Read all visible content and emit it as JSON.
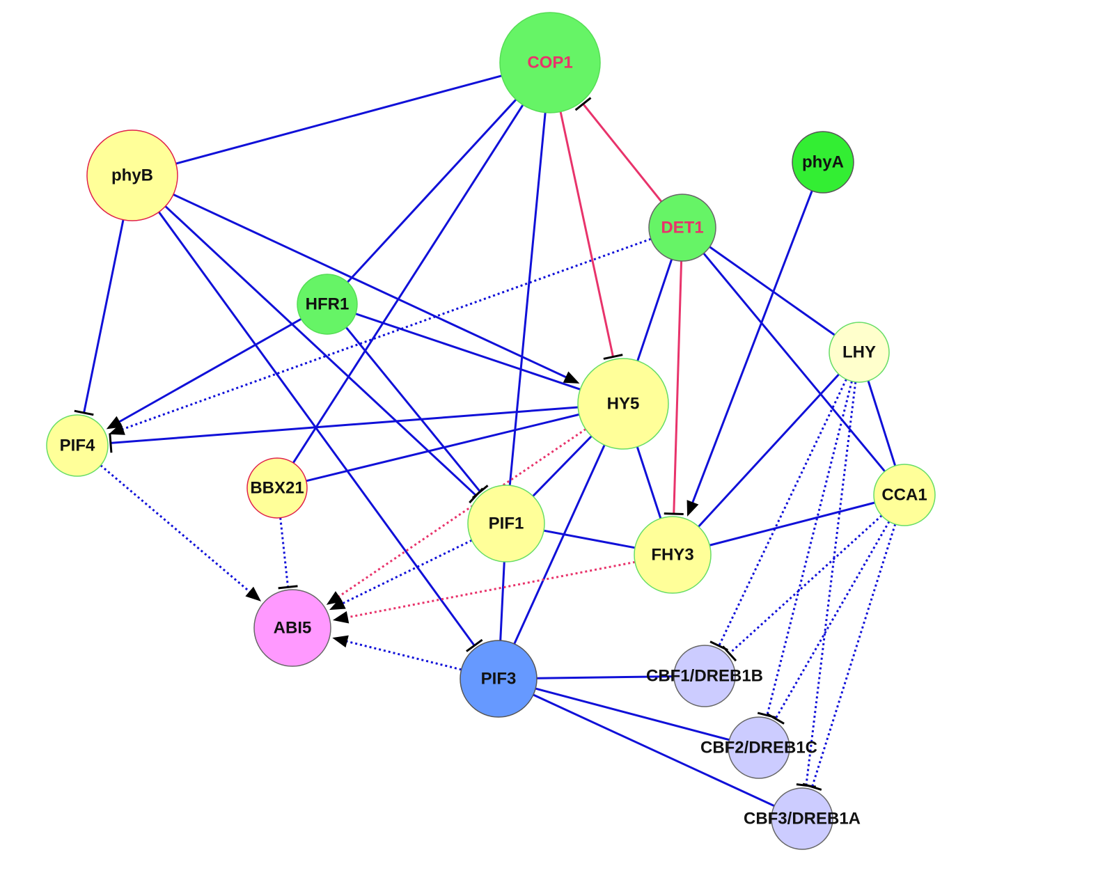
{
  "colors": {
    "activation_edge": "#1010d8",
    "repression_edge": "#e8336b",
    "marker": "#000000",
    "red_label": "#e8336b"
  },
  "nodes": [
    {
      "id": "COP1",
      "label": "COP1",
      "fill": "#66f466",
      "stroke": "#55dd55",
      "label_color": "#e8336b"
    },
    {
      "id": "phyB",
      "label": "phyB",
      "fill": "#ffff99",
      "stroke": "#e0204a",
      "label_color": "#111111"
    },
    {
      "id": "phyA",
      "label": "phyA",
      "fill": "#33ee33",
      "stroke": "#555555",
      "label_color": "#111111"
    },
    {
      "id": "DET1",
      "label": "DET1",
      "fill": "#66f466",
      "stroke": "#666666",
      "label_color": "#e8336b"
    },
    {
      "id": "HFR1",
      "label": "HFR1",
      "fill": "#66f466",
      "stroke": "#55dd55",
      "label_color": "#111111"
    },
    {
      "id": "LHY",
      "label": "LHY",
      "fill": "#ffffcc",
      "stroke": "#66dd66",
      "label_color": "#111111"
    },
    {
      "id": "HY5",
      "label": "HY5",
      "fill": "#ffff99",
      "stroke": "#66dd66",
      "label_color": "#111111"
    },
    {
      "id": "PIF4",
      "label": "PIF4",
      "fill": "#ffff99",
      "stroke": "#66dd66",
      "label_color": "#111111"
    },
    {
      "id": "BBX21",
      "label": "BBX21",
      "fill": "#ffff99",
      "stroke": "#e0204a",
      "label_color": "#111111"
    },
    {
      "id": "PIF1",
      "label": "PIF1",
      "fill": "#ffff99",
      "stroke": "#66dd66",
      "label_color": "#111111"
    },
    {
      "id": "CCA1",
      "label": "CCA1",
      "fill": "#ffff99",
      "stroke": "#66dd66",
      "label_color": "#111111"
    },
    {
      "id": "FHY3",
      "label": "FHY3",
      "fill": "#ffff99",
      "stroke": "#66dd66",
      "label_color": "#111111"
    },
    {
      "id": "ABI5",
      "label": "ABI5",
      "fill": "#ff99ff",
      "stroke": "#666666",
      "label_color": "#111111"
    },
    {
      "id": "PIF3",
      "label": "PIF3",
      "fill": "#6699ff",
      "stroke": "#555555",
      "label_color": "#111111"
    },
    {
      "id": "CBF1",
      "label": "CBF1/DREB1B",
      "fill": "#ccccff",
      "stroke": "#666666",
      "label_color": "#111111"
    },
    {
      "id": "CBF2",
      "label": "CBF2/DREB1C",
      "fill": "#ccccff",
      "stroke": "#666666",
      "label_color": "#111111"
    },
    {
      "id": "CBF3",
      "label": "CBF3/DREB1A",
      "fill": "#ccccff",
      "stroke": "#666666",
      "label_color": "#111111"
    }
  ],
  "edges": [
    {
      "s": "COP1",
      "t": "phyB",
      "color": "blue",
      "style": "solid",
      "end": "none"
    },
    {
      "s": "COP1",
      "t": "HFR1",
      "color": "blue",
      "style": "solid",
      "end": "none"
    },
    {
      "s": "COP1",
      "t": "BBX21",
      "color": "blue",
      "style": "solid",
      "end": "none"
    },
    {
      "s": "COP1",
      "t": "PIF1",
      "color": "blue",
      "style": "solid",
      "end": "none"
    },
    {
      "s": "COP1",
      "t": "HY5",
      "color": "red",
      "style": "solid",
      "end": "inhibit"
    },
    {
      "s": "DET1",
      "t": "COP1",
      "color": "red",
      "style": "solid",
      "end": "inhibit"
    },
    {
      "s": "phyB",
      "t": "PIF4",
      "color": "blue",
      "style": "solid",
      "end": "inhibit"
    },
    {
      "s": "phyB",
      "t": "HY5",
      "color": "blue",
      "style": "solid",
      "end": "arrow"
    },
    {
      "s": "phyB",
      "t": "PIF1",
      "color": "blue",
      "style": "solid",
      "end": "inhibit"
    },
    {
      "s": "phyB",
      "t": "PIF3",
      "color": "blue",
      "style": "solid",
      "end": "inhibit"
    },
    {
      "s": "HFR1",
      "t": "PIF4",
      "color": "blue",
      "style": "solid",
      "end": "arrow"
    },
    {
      "s": "HFR1",
      "t": "HY5",
      "color": "blue",
      "style": "solid",
      "end": "none"
    },
    {
      "s": "HFR1",
      "t": "PIF1",
      "color": "blue",
      "style": "solid",
      "end": "inhibit"
    },
    {
      "s": "DET1",
      "t": "PIF4",
      "color": "blue",
      "style": "dotted",
      "end": "arrow"
    },
    {
      "s": "HY5",
      "t": "PIF4",
      "color": "blue",
      "style": "solid",
      "end": "inhibit"
    },
    {
      "s": "HY5",
      "t": "BBX21",
      "color": "blue",
      "style": "solid",
      "end": "none"
    },
    {
      "s": "DET1",
      "t": "HY5",
      "color": "blue",
      "style": "solid",
      "end": "none"
    },
    {
      "s": "DET1",
      "t": "FHY3",
      "color": "red",
      "style": "solid",
      "end": "inhibit"
    },
    {
      "s": "DET1",
      "t": "LHY",
      "color": "blue",
      "style": "solid",
      "end": "none"
    },
    {
      "s": "DET1",
      "t": "CCA1",
      "color": "blue",
      "style": "solid",
      "end": "none"
    },
    {
      "s": "phyA",
      "t": "FHY3",
      "color": "blue",
      "style": "solid",
      "end": "arrow"
    },
    {
      "s": "LHY",
      "t": "FHY3",
      "color": "blue",
      "style": "solid",
      "end": "none"
    },
    {
      "s": "LHY",
      "t": "CCA1",
      "color": "blue",
      "style": "solid",
      "end": "none"
    },
    {
      "s": "CCA1",
      "t": "FHY3",
      "color": "blue",
      "style": "solid",
      "end": "none"
    },
    {
      "s": "HY5",
      "t": "FHY3",
      "color": "blue",
      "style": "solid",
      "end": "none"
    },
    {
      "s": "HY5",
      "t": "PIF1",
      "color": "blue",
      "style": "solid",
      "end": "none"
    },
    {
      "s": "HY5",
      "t": "PIF3",
      "color": "blue",
      "style": "solid",
      "end": "none"
    },
    {
      "s": "PIF1",
      "t": "FHY3",
      "color": "blue",
      "style": "solid",
      "end": "none"
    },
    {
      "s": "PIF1",
      "t": "PIF3",
      "color": "blue",
      "style": "solid",
      "end": "none"
    },
    {
      "s": "HY5",
      "t": "ABI5",
      "color": "red",
      "style": "dotted",
      "end": "arrow"
    },
    {
      "s": "PIF1",
      "t": "ABI5",
      "color": "blue",
      "style": "dotted",
      "end": "arrow"
    },
    {
      "s": "FHY3",
      "t": "ABI5",
      "color": "red",
      "style": "dotted",
      "end": "arrow"
    },
    {
      "s": "PIF3",
      "t": "ABI5",
      "color": "blue",
      "style": "dotted",
      "end": "arrow"
    },
    {
      "s": "PIF4",
      "t": "ABI5",
      "color": "blue",
      "style": "dotted",
      "end": "arrow"
    },
    {
      "s": "BBX21",
      "t": "ABI5",
      "color": "blue",
      "style": "dotted",
      "end": "inhibit"
    },
    {
      "s": "PIF3",
      "t": "CBF1",
      "color": "blue",
      "style": "solid",
      "end": "none"
    },
    {
      "s": "PIF3",
      "t": "CBF2",
      "color": "blue",
      "style": "solid",
      "end": "none"
    },
    {
      "s": "PIF3",
      "t": "CBF3",
      "color": "blue",
      "style": "solid",
      "end": "none"
    },
    {
      "s": "LHY",
      "t": "CBF1",
      "color": "blue",
      "style": "dotted",
      "end": "inhibit"
    },
    {
      "s": "LHY",
      "t": "CBF2",
      "color": "blue",
      "style": "dotted",
      "end": "inhibit"
    },
    {
      "s": "LHY",
      "t": "CBF3",
      "color": "blue",
      "style": "dotted",
      "end": "inhibit"
    },
    {
      "s": "CCA1",
      "t": "CBF1",
      "color": "blue",
      "style": "dotted",
      "end": "inhibit"
    },
    {
      "s": "CCA1",
      "t": "CBF2",
      "color": "blue",
      "style": "dotted",
      "end": "inhibit"
    },
    {
      "s": "CCA1",
      "t": "CBF3",
      "color": "blue",
      "style": "dotted",
      "end": "inhibit"
    }
  ]
}
